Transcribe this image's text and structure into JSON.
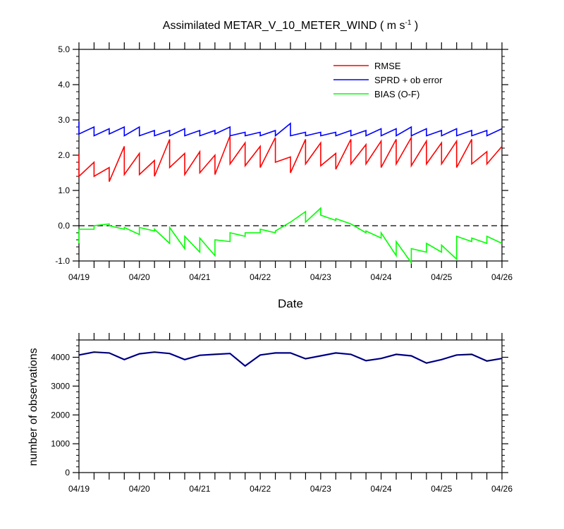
{
  "title_main": "Assimilated METAR_V_10_METER_WIND ( m s",
  "title_exp": "-1",
  "title_close": " )",
  "xlabel_top": "Date",
  "ylabel_bottom": "number of observations",
  "colors": {
    "rmse": "#ff0000",
    "sprd": "#0000ff",
    "bias": "#00ff00",
    "obs_used": "#0000ff",
    "obs_possible": "#000000",
    "zero_line": "#000000"
  },
  "chart_data": [
    {
      "type": "line",
      "title": "Assimilated METAR_V_10_METER_WIND ( m s-1 )",
      "xlabel": "Date",
      "ylabel": "",
      "x_ticks": [
        "04/19",
        "04/20",
        "04/21",
        "04/22",
        "04/23",
        "04/24",
        "04/25",
        "04/26"
      ],
      "y_ticks": [
        "-1.0",
        "0.0",
        "1.0",
        "2.0",
        "3.0",
        "4.0",
        "5.0"
      ],
      "xlim": [
        0,
        7
      ],
      "ylim": [
        -1,
        5
      ],
      "grid": false,
      "zero_line": "dashed",
      "legend_position": "top-right",
      "series": [
        {
          "name": "RMSE",
          "color": "#ff0000",
          "x": [
            0,
            0,
            0.25,
            0.25,
            0.5,
            0.5,
            0.75,
            0.75,
            1,
            1,
            1.25,
            1.25,
            1.5,
            1.5,
            1.75,
            1.75,
            2,
            2,
            2.25,
            2.25,
            2.5,
            2.5,
            2.75,
            2.75,
            3,
            3,
            3.25,
            3.25,
            3.5,
            3.5,
            3.75,
            3.75,
            4,
            4,
            4.25,
            4.25,
            4.5,
            4.5,
            4.75,
            4.75,
            5,
            5,
            5.25,
            5.25,
            5.5,
            5.5,
            5.75,
            5.75,
            6,
            6,
            6.25,
            6.25,
            6.5,
            6.5,
            6.75,
            6.75,
            7
          ],
          "y": [
            2.05,
            1.4,
            1.8,
            1.4,
            1.65,
            1.25,
            2.25,
            1.45,
            2.05,
            1.45,
            1.85,
            1.4,
            2.45,
            1.65,
            2.05,
            1.45,
            2.1,
            1.5,
            2.0,
            1.45,
            2.55,
            1.75,
            2.35,
            1.7,
            2.25,
            1.65,
            2.5,
            1.8,
            1.95,
            1.5,
            2.45,
            1.75,
            2.35,
            1.7,
            2.05,
            1.6,
            2.45,
            1.75,
            2.3,
            1.75,
            2.4,
            1.65,
            2.45,
            1.75,
            2.5,
            1.7,
            2.4,
            1.75,
            2.35,
            1.75,
            2.4,
            1.65,
            2.45,
            1.75,
            2.1,
            1.75,
            2.25
          ]
        },
        {
          "name": "SPRD + ob error",
          "color": "#0000ff",
          "x": [
            0,
            0,
            0.25,
            0.25,
            0.5,
            0.5,
            0.75,
            0.75,
            1,
            1,
            1.25,
            1.25,
            1.5,
            1.5,
            1.75,
            1.75,
            2,
            2,
            2.25,
            2.25,
            2.5,
            2.5,
            2.75,
            2.75,
            3,
            3,
            3.25,
            3.25,
            3.5,
            3.5,
            3.75,
            3.75,
            4,
            4,
            4.25,
            4.25,
            4.5,
            4.5,
            4.75,
            4.75,
            5,
            5,
            5.25,
            5.25,
            5.5,
            5.5,
            5.75,
            5.75,
            6,
            6,
            6.25,
            6.25,
            6.5,
            6.5,
            6.75,
            6.75,
            7
          ],
          "y": [
            2.95,
            2.6,
            2.8,
            2.55,
            2.75,
            2.6,
            2.8,
            2.55,
            2.8,
            2.55,
            2.7,
            2.55,
            2.7,
            2.55,
            2.75,
            2.55,
            2.7,
            2.55,
            2.7,
            2.6,
            2.8,
            2.55,
            2.65,
            2.55,
            2.65,
            2.55,
            2.7,
            2.55,
            2.9,
            2.55,
            2.65,
            2.55,
            2.65,
            2.55,
            2.65,
            2.55,
            2.7,
            2.55,
            2.7,
            2.55,
            2.75,
            2.55,
            2.75,
            2.55,
            2.8,
            2.55,
            2.75,
            2.55,
            2.7,
            2.55,
            2.75,
            2.55,
            2.7,
            2.55,
            2.7,
            2.55,
            2.75
          ]
        },
        {
          "name": "BIAS (O-F)",
          "color": "#00ff00",
          "x": [
            0,
            0,
            0.25,
            0.25,
            0.5,
            0.5,
            0.75,
            0.75,
            1,
            1,
            1.25,
            1.25,
            1.5,
            1.5,
            1.75,
            1.75,
            2,
            2,
            2.25,
            2.25,
            2.5,
            2.5,
            2.75,
            2.75,
            3,
            3,
            3.25,
            3.25,
            3.5,
            3.5,
            3.75,
            3.75,
            4,
            4,
            4.25,
            4.25,
            4.5,
            4.5,
            4.75,
            4.75,
            5,
            5,
            5.25,
            5.25,
            5.5,
            5.5,
            5.75,
            5.75,
            6,
            6,
            6.25,
            6.25,
            6.5,
            6.5,
            6.75,
            6.75,
            7
          ],
          "y": [
            -0.5,
            -0.1,
            -0.1,
            0.0,
            0.05,
            0.0,
            -0.1,
            -0.05,
            -0.25,
            -0.05,
            -0.15,
            -0.1,
            -0.5,
            -0.05,
            -0.65,
            -0.3,
            -0.75,
            -0.35,
            -0.85,
            -0.4,
            -0.45,
            -0.2,
            -0.3,
            -0.2,
            -0.2,
            -0.1,
            -0.2,
            -0.15,
            0.1,
            0.1,
            0.4,
            0.1,
            0.5,
            0.3,
            0.15,
            0.2,
            0.05,
            0.05,
            -0.2,
            -0.15,
            -0.35,
            -0.2,
            -0.85,
            -0.45,
            -1.05,
            -0.65,
            -0.75,
            -0.5,
            -0.75,
            -0.55,
            -0.95,
            -0.3,
            -0.45,
            -0.35,
            -0.5,
            -0.3,
            -0.5
          ]
        }
      ]
    },
    {
      "type": "line",
      "title": "",
      "xlabel": "",
      "ylabel": "number of observations",
      "x_ticks": [
        "04/19",
        "04/20",
        "04/21",
        "04/22",
        "04/23",
        "04/24",
        "04/25",
        "04/26"
      ],
      "y_ticks": [
        "0",
        "1000",
        "2000",
        "3000",
        "4000"
      ],
      "xlim": [
        0,
        7
      ],
      "ylim": [
        0,
        4600
      ],
      "grid": false,
      "series": [
        {
          "name": "",
          "color": "#0000ff",
          "x": [
            0,
            0.25,
            0.5,
            0.75,
            1,
            1.25,
            1.5,
            1.75,
            2,
            2.25,
            2.5,
            2.75,
            3,
            3.25,
            3.5,
            3.75,
            4,
            4.25,
            4.5,
            4.75,
            5,
            5.25,
            5.5,
            5.75,
            6,
            6.25,
            6.5,
            6.75,
            7
          ],
          "y": [
            4080,
            4180,
            4150,
            3920,
            4120,
            4180,
            4130,
            3920,
            4070,
            4100,
            4130,
            3700,
            4080,
            4150,
            4150,
            3950,
            4050,
            4150,
            4100,
            3880,
            3960,
            4100,
            4050,
            3800,
            3920,
            4080,
            4100,
            3870,
            3960
          ]
        },
        {
          "name": "",
          "color": "#000000",
          "x": [
            0,
            0.25,
            0.5,
            0.75,
            1,
            1.25,
            1.5,
            1.75,
            2,
            2.25,
            2.5,
            2.75,
            3,
            3.25,
            3.5,
            3.75,
            4,
            4.25,
            4.5,
            4.75,
            5,
            5.25,
            5.5,
            5.75,
            6,
            6.25,
            6.5,
            6.75,
            7
          ],
          "y": [
            4080,
            4180,
            4150,
            3920,
            4120,
            4180,
            4130,
            3920,
            4070,
            4100,
            4130,
            3700,
            4080,
            4150,
            4150,
            3950,
            4050,
            4150,
            4100,
            3880,
            3960,
            4100,
            4050,
            3800,
            3920,
            4080,
            4100,
            3870,
            3960
          ]
        }
      ]
    }
  ]
}
